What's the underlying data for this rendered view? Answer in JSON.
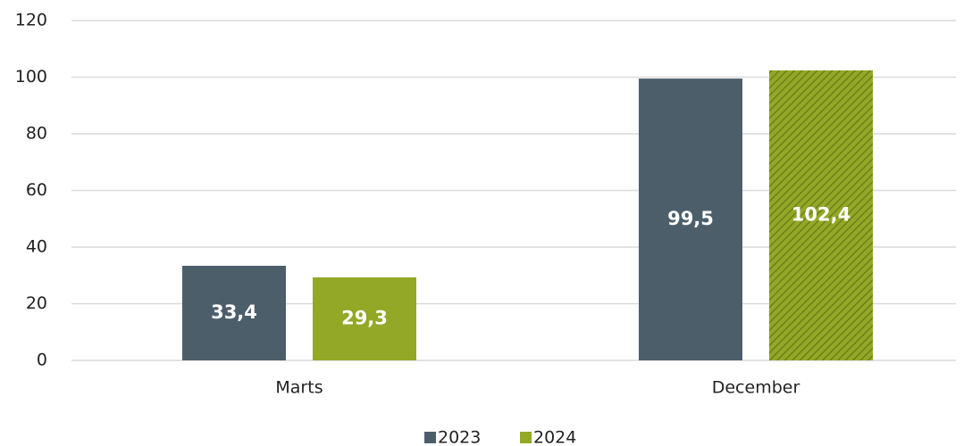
{
  "chart_data": {
    "type": "bar",
    "categories": [
      "Marts",
      "December"
    ],
    "series": [
      {
        "name": "2023",
        "color": "#4d5e6b",
        "values": [
          33.4,
          99.5
        ],
        "value_labels": [
          "33,4",
          "99,5"
        ]
      },
      {
        "name": "2024",
        "color": "#93a826",
        "values": [
          29.3,
          102.4
        ],
        "value_labels": [
          "29,3",
          "102,4"
        ],
        "hatch": [
          false,
          true
        ]
      }
    ],
    "ylim": [
      0,
      120
    ],
    "yticks": [
      0,
      20,
      40,
      60,
      80,
      100,
      120
    ],
    "grid": true,
    "legend": "bottom"
  }
}
